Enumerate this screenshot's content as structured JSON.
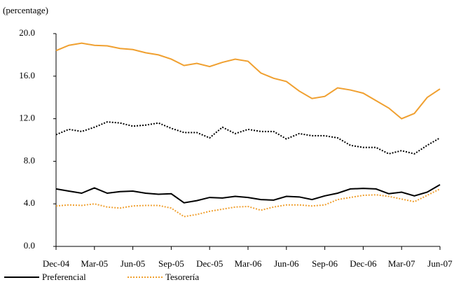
{
  "chart_data": {
    "type": "line",
    "y_label": "(percentage)",
    "categories": [
      "Dec-04",
      null,
      null,
      "Mar-05",
      null,
      null,
      "Jun-05",
      null,
      null,
      "Sep-05",
      null,
      null,
      "Dec-05",
      null,
      null,
      "Mar-06",
      null,
      null,
      "Jun-06",
      null,
      null,
      "Sep-06",
      null,
      null,
      "Dec-06",
      null,
      null,
      "Mar-07",
      null,
      null,
      "Jun-07"
    ],
    "series": [
      {
        "color": "#f0a030",
        "dashed": false,
        "values": [
          18.4,
          18.9,
          19.1,
          18.9,
          18.85,
          18.6,
          18.5,
          18.2,
          18.0,
          17.6,
          17.0,
          17.2,
          16.9,
          17.3,
          17.6,
          17.4,
          16.3,
          15.8,
          15.5,
          14.6,
          13.9,
          14.1,
          14.9,
          14.7,
          14.4,
          13.7,
          13.0,
          12.0,
          12.5,
          14.0,
          14.8
        ]
      },
      {
        "color": "#000000",
        "dashed": true,
        "values": [
          10.5,
          11.0,
          10.8,
          11.2,
          11.7,
          11.6,
          11.3,
          11.4,
          11.6,
          11.1,
          10.7,
          10.7,
          10.2,
          11.2,
          10.6,
          11.0,
          10.8,
          10.8,
          10.1,
          10.6,
          10.4,
          10.4,
          10.2,
          9.5,
          9.3,
          9.3,
          8.7,
          9.0,
          8.7,
          9.5,
          10.2
        ]
      },
      {
        "name": "Preferencial",
        "color": "#000000",
        "dashed": false,
        "values": [
          5.4,
          5.2,
          5.0,
          5.5,
          5.0,
          5.15,
          5.2,
          5.0,
          4.9,
          4.95,
          4.1,
          4.3,
          4.6,
          4.55,
          4.7,
          4.6,
          4.4,
          4.35,
          4.7,
          4.65,
          4.4,
          4.75,
          5.0,
          5.4,
          5.45,
          5.4,
          4.95,
          5.1,
          4.75,
          5.1,
          5.8
        ]
      },
      {
        "name": "Tesorería",
        "color": "#f0a030",
        "dashed": true,
        "values": [
          3.8,
          3.9,
          3.85,
          4.0,
          3.7,
          3.6,
          3.8,
          3.85,
          3.85,
          3.6,
          2.8,
          3.0,
          3.3,
          3.5,
          3.7,
          3.75,
          3.4,
          3.7,
          3.9,
          3.9,
          3.8,
          3.9,
          4.4,
          4.6,
          4.8,
          4.85,
          4.7,
          4.45,
          4.2,
          4.8,
          5.4
        ]
      }
    ],
    "ylim": [
      0,
      20
    ],
    "yticks": [
      {
        "value": 0,
        "label": "0.0"
      },
      {
        "value": 4,
        "label": "4.0"
      },
      {
        "value": 8,
        "label": "8.0"
      },
      {
        "value": 12,
        "label": "12.0"
      },
      {
        "value": 16,
        "label": "16.0"
      },
      {
        "value": 20,
        "label": "20.0"
      }
    ],
    "grid": false
  }
}
